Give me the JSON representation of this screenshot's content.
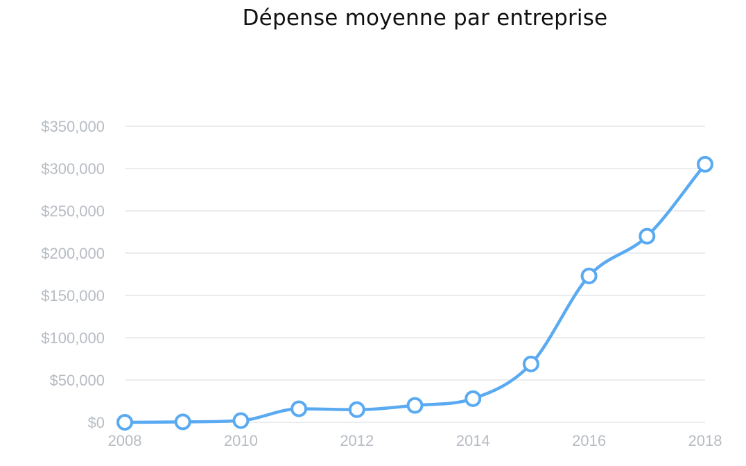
{
  "chart_data": {
    "type": "line",
    "title": "Dépense moyenne par entreprise",
    "xlabel": "",
    "ylabel": "",
    "x": [
      2008,
      2009,
      2010,
      2011,
      2012,
      2013,
      2014,
      2015,
      2016,
      2017,
      2018
    ],
    "x_tick_labels": [
      "2008",
      "2010",
      "2012",
      "2014",
      "2016",
      "2018"
    ],
    "x_ticks": [
      2008,
      2010,
      2012,
      2014,
      2016,
      2018
    ],
    "xlim": [
      2008,
      2018
    ],
    "y_tick_labels": [
      "$0",
      "$50,000",
      "$100,000",
      "$150,000",
      "$200,000",
      "$250,000",
      "$300,000",
      "$350,000"
    ],
    "y_ticks": [
      0,
      50000,
      100000,
      150000,
      200000,
      250000,
      300000,
      350000
    ],
    "ylim": [
      0,
      350000
    ],
    "grid": true,
    "legend": "none",
    "series": [
      {
        "values": [
          0,
          500,
          2000,
          16000,
          15000,
          20000,
          28000,
          69000,
          173000,
          220000,
          305000
        ],
        "color": "#5aaaf2",
        "smooth": true
      }
    ]
  }
}
